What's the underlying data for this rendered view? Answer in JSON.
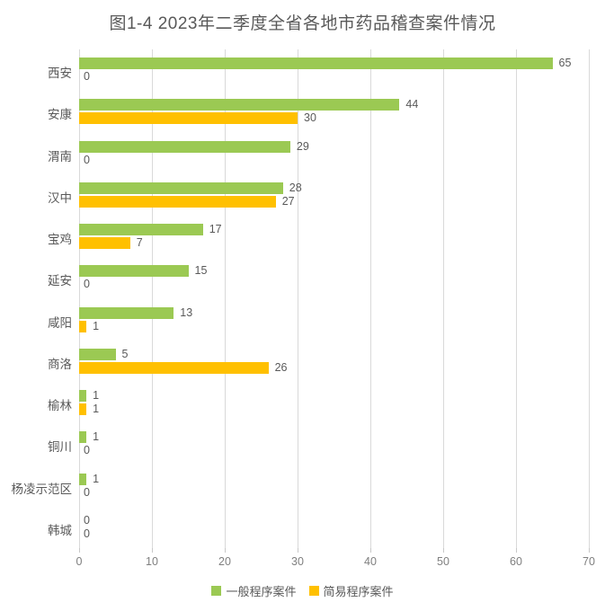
{
  "chart_data": {
    "type": "bar",
    "orientation": "horizontal",
    "title": "图1-4 2023年二季度全省各地市药品稽查案件情况",
    "categories": [
      "西安",
      "安康",
      "渭南",
      "汉中",
      "宝鸡",
      "延安",
      "咸阳",
      "商洛",
      "榆林",
      "铜川",
      "杨凌示范区",
      "韩城"
    ],
    "series": [
      {
        "name": "一般程序案件",
        "color": "#9bc953",
        "values": [
          65,
          44,
          29,
          28,
          17,
          15,
          13,
          5,
          1,
          1,
          1,
          0
        ]
      },
      {
        "name": "简易程序案件",
        "color": "#ffc000",
        "values": [
          0,
          30,
          0,
          27,
          7,
          0,
          1,
          26,
          1,
          0,
          0,
          0
        ]
      }
    ],
    "xlim": [
      0,
      70
    ],
    "x_ticks": [
      0,
      10,
      20,
      30,
      40,
      50,
      60,
      70
    ],
    "grid": "vertical",
    "gridline_color": "#d9d9d9",
    "value_labels": true,
    "legend_position": "bottom",
    "text_color": "#595959"
  }
}
